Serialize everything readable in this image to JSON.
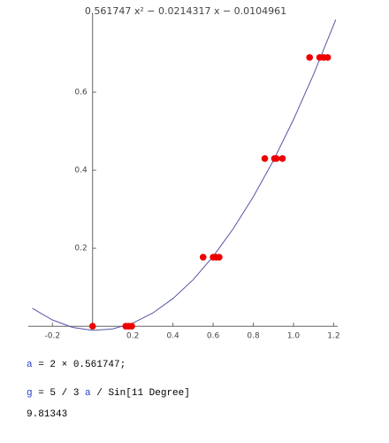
{
  "chart_data": {
    "type": "scatter",
    "title": "0.561747 x² − 0.0214317 x − 0.0104961",
    "xlim": [
      -0.32,
      1.22
    ],
    "ylim": [
      -0.02,
      0.8
    ],
    "xticks": [
      -0.2,
      0.2,
      0.4,
      0.6,
      0.8,
      {
        "value": 1.0,
        "label": "1.0"
      },
      1.2
    ],
    "yticks": [
      0.2,
      0.4,
      0.6
    ],
    "series": [
      {
        "type": "scatter",
        "color": "#ee0000",
        "x": [
          0,
          0.165,
          0.18,
          0.195,
          0.55,
          0.6,
          0.615,
          0.63,
          0.857,
          0.905,
          0.915,
          0.945,
          1.08,
          1.13,
          1.15,
          1.17
        ],
        "values": [
          0,
          0,
          0,
          0,
          0.177,
          0.177,
          0.177,
          0.177,
          0.43,
          0.43,
          0.43,
          0.43,
          0.689,
          0.689,
          0.689,
          0.689
        ]
      },
      {
        "type": "line",
        "color": "#5555a8",
        "x": [
          -0.3,
          -0.2,
          -0.1,
          0,
          0.1,
          0.2,
          0.3,
          0.4,
          0.5,
          0.6,
          0.7,
          0.8,
          0.9,
          1.0,
          1.1,
          1.2,
          1.21
        ],
        "values": [
          0.046,
          0.016,
          -0.003,
          -0.0105,
          -0.007,
          0.008,
          0.034,
          0.071,
          0.119,
          0.179,
          0.25,
          0.332,
          0.425,
          0.53,
          0.646,
          0.773,
          0.786
        ]
      }
    ]
  },
  "notebook": {
    "input1": [
      "a",
      " = 2 × 0.561747;"
    ],
    "input2": [
      "g",
      " = 5 / 3 ",
      "a",
      " / Sin[11 Degree]"
    ],
    "output": "9.81343"
  }
}
